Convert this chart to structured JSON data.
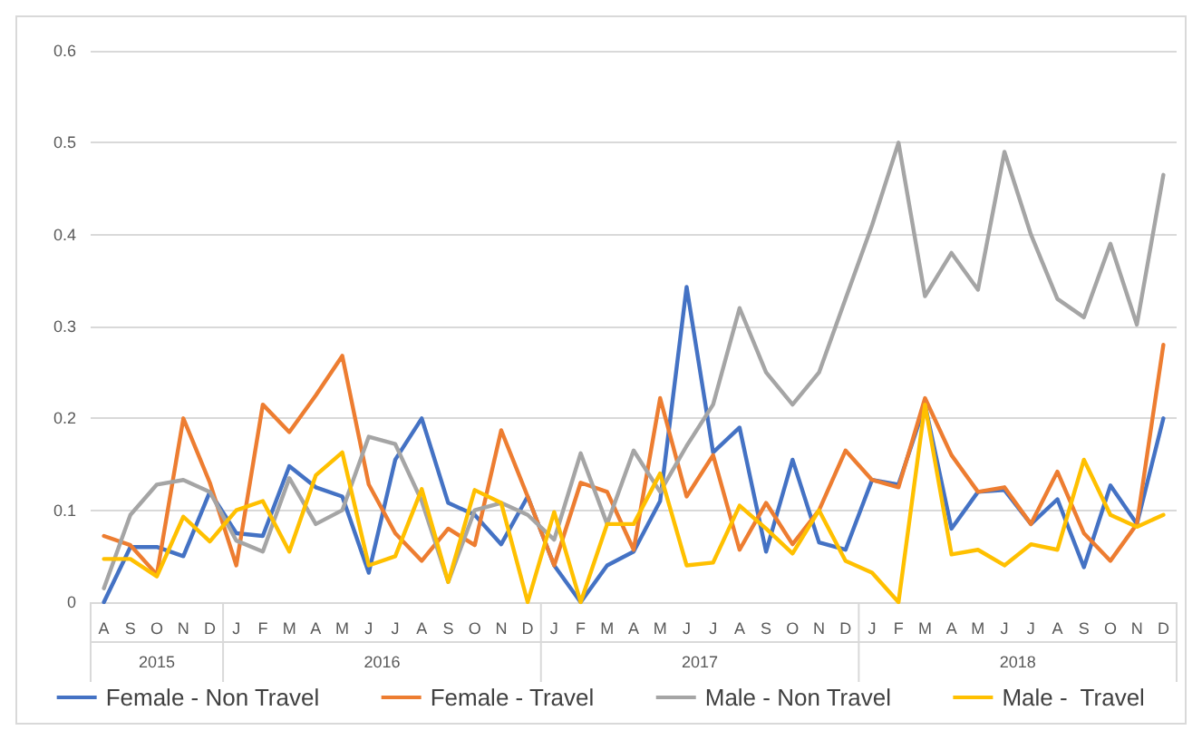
{
  "chart_data": {
    "type": "line",
    "categories": [
      "A",
      "S",
      "O",
      "N",
      "D",
      "J",
      "F",
      "M",
      "A",
      "M",
      "J",
      "J",
      "A",
      "S",
      "O",
      "N",
      "D",
      "J",
      "F",
      "M",
      "A",
      "M",
      "J",
      "J",
      "A",
      "S",
      "O",
      "N",
      "D",
      "J",
      "F",
      "M",
      "A",
      "M",
      "J",
      "J",
      "A",
      "S",
      "O",
      "N",
      "D"
    ],
    "annotations": [
      "2015",
      "2016",
      "2017",
      "2018"
    ],
    "series": [
      {
        "name": "Female - Non Travel",
        "color": "#4472c4",
        "values": [
          0,
          0.06,
          0.06,
          0.05,
          0.12,
          0.075,
          0.072,
          0.148,
          0.125,
          0.115,
          0.032,
          0.155,
          0.2,
          0.108,
          0.095,
          0.063,
          0.115,
          0.04,
          0,
          0.04,
          0.055,
          0.11,
          0.343,
          0.163,
          0.19,
          0.055,
          0.155,
          0.065,
          0.057,
          0.133,
          0.128,
          0.215,
          0.08,
          0.12,
          0.122,
          0.085,
          0.112,
          0.038,
          0.127,
          0.085,
          0.2
        ]
      },
      {
        "name": "Female - Travel",
        "color": "#ed7d31",
        "values": [
          0.072,
          0.062,
          0.03,
          0.2,
          0.13,
          0.04,
          0.215,
          0.185,
          0.225,
          0.268,
          0.128,
          0.075,
          0.045,
          0.08,
          0.062,
          0.187,
          0.115,
          0.04,
          0.13,
          0.12,
          0.057,
          0.222,
          0.115,
          0.16,
          0.057,
          0.108,
          0.063,
          0.1,
          0.165,
          0.133,
          0.125,
          0.222,
          0.16,
          0.12,
          0.125,
          0.085,
          0.142,
          0.075,
          0.045,
          0.085,
          0.28
        ]
      },
      {
        "name": "Male - Non Travel",
        "color": "#a5a5a5",
        "values": [
          0.015,
          0.095,
          0.128,
          0.133,
          0.12,
          0.067,
          0.055,
          0.135,
          0.085,
          0.1,
          0.18,
          0.172,
          0.11,
          0.022,
          0.1,
          0.108,
          0.095,
          0.068,
          0.162,
          0.085,
          0.165,
          0.12,
          0.17,
          0.215,
          0.32,
          0.25,
          0.215,
          0.25,
          0.33,
          0.41,
          0.5,
          0.333,
          0.38,
          0.34,
          0.49,
          0.4,
          0.33,
          0.31,
          0.39,
          0.302,
          0.465
        ]
      },
      {
        "name": "Male -  Travel",
        "color": "#ffc000",
        "values": [
          0.047,
          0.047,
          0.028,
          0.093,
          0.066,
          0.1,
          0.11,
          0.055,
          0.138,
          0.163,
          0.04,
          0.05,
          0.123,
          0.022,
          0.122,
          0.108,
          0,
          0.098,
          0,
          0.085,
          0.085,
          0.14,
          0.04,
          0.043,
          0.105,
          0.08,
          0.053,
          0.1,
          0.045,
          0.032,
          0,
          0.215,
          0.052,
          0.057,
          0.04,
          0.063,
          0.057,
          0.155,
          0.095,
          0.082,
          0.095
        ]
      }
    ],
    "ylim": [
      0,
      0.6
    ],
    "yticks": [
      0,
      0.1,
      0.2,
      0.3,
      0.4,
      0.5,
      0.6
    ],
    "grid": "y",
    "legend": "bottom",
    "marker": "none",
    "line_style": "solid"
  }
}
